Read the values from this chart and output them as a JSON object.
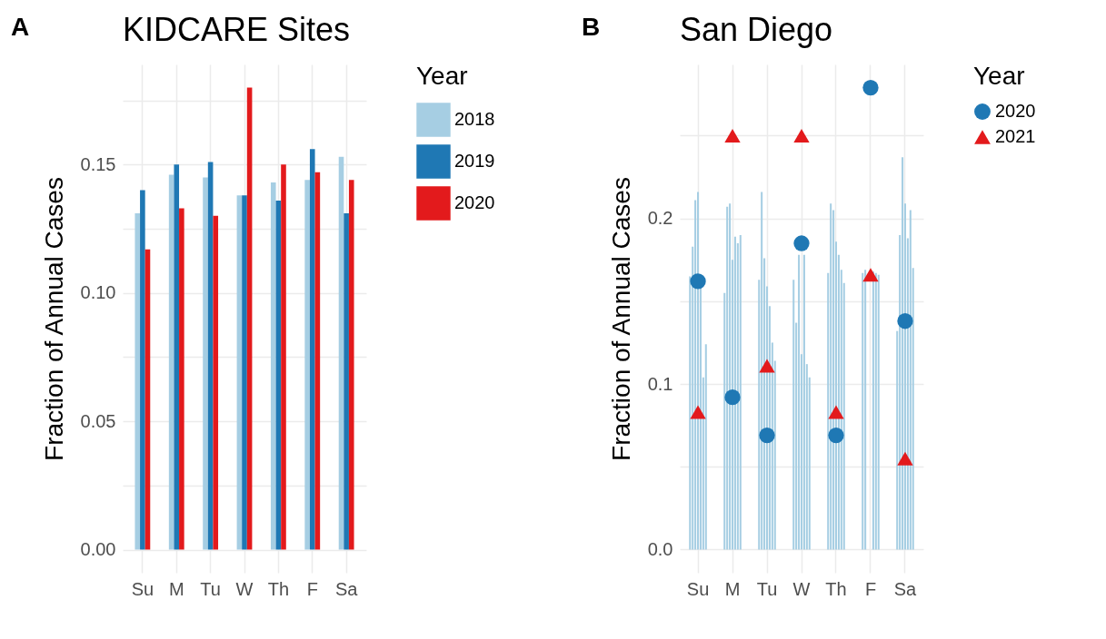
{
  "chart_data": [
    {
      "type": "bar",
      "title": "KIDCARE Sites",
      "ylabel": "Fraction of Annual Cases",
      "legend_title": "Year",
      "annotations": [
        "A"
      ],
      "categories": [
        "Su",
        "M",
        "Tu",
        "W",
        "Th",
        "F",
        "Sa"
      ],
      "series": [
        {
          "name": "2018",
          "color": "#a6cee3",
          "values": [
            0.131,
            0.146,
            0.145,
            0.138,
            0.143,
            0.144,
            0.153
          ]
        },
        {
          "name": "2019",
          "color": "#1f78b4",
          "values": [
            0.14,
            0.15,
            0.151,
            0.138,
            0.136,
            0.156,
            0.131
          ]
        },
        {
          "name": "2020",
          "color": "#e31a1c",
          "values": [
            0.117,
            0.133,
            0.13,
            0.18,
            0.15,
            0.147,
            0.144
          ]
        }
      ],
      "ylim": [
        -0.009,
        0.189
      ],
      "yticks": [
        {
          "value": 0,
          "label": "0.00"
        },
        {
          "value": 0.025,
          "label": null
        },
        {
          "value": 0.05,
          "label": "0.05"
        },
        {
          "value": 0.075,
          "label": null
        },
        {
          "value": 0.1,
          "label": "0.10"
        },
        {
          "value": 0.125,
          "label": null
        },
        {
          "value": 0.15,
          "label": "0.15"
        },
        {
          "value": 0.175,
          "label": null
        }
      ],
      "grid": true,
      "legend": "right"
    },
    {
      "type": "bar",
      "title": "San Diego",
      "ylabel": "Fraction of Annual Cases",
      "legend_title": "Year",
      "annotations": [
        "B"
      ],
      "categories": [
        null,
        null,
        null,
        null,
        null,
        null,
        "Su",
        null,
        null,
        null,
        null,
        null,
        null,
        null,
        null,
        null,
        null,
        null,
        null,
        "M",
        null,
        null,
        null,
        null,
        null,
        null,
        null,
        null,
        null,
        null,
        null,
        null,
        "Tu",
        null,
        null,
        null,
        null,
        null,
        null,
        null,
        null,
        null,
        null,
        null,
        null,
        "W",
        null,
        null,
        null,
        null,
        null,
        null,
        null,
        null,
        null,
        null,
        null,
        null,
        "Th",
        null,
        null,
        null,
        null,
        null,
        null,
        null,
        null,
        null,
        null,
        null,
        null,
        "F",
        null,
        null,
        null,
        null,
        null,
        null,
        null,
        null,
        null,
        null,
        null,
        null,
        "Sa",
        null,
        null,
        null,
        null,
        null,
        null
      ],
      "series": [
        {
          "type": "bar",
          "color": "#a6cee3",
          "values": [
            null,
            null,
            null,
            0.165,
            0.183,
            0.211,
            0.216,
            0.159,
            0.104,
            0.124,
            null,
            null,
            null,
            null,
            null,
            null,
            0.155,
            0.207,
            0.209,
            0.175,
            0.189,
            0.185,
            0.19,
            null,
            null,
            null,
            null,
            null,
            null,
            0.163,
            0.216,
            0.176,
            0.159,
            0.147,
            0.125,
            0.114,
            null,
            null,
            null,
            null,
            null,
            null,
            0.163,
            0.137,
            0.178,
            0.118,
            0.178,
            0.112,
            0.104,
            null,
            null,
            null,
            null,
            null,
            null,
            0.167,
            0.209,
            0.205,
            0.186,
            0.178,
            0.169,
            0.161,
            null,
            null,
            null,
            null,
            null,
            null,
            0.167,
            0.169,
            null,
            null,
            0.168,
            0.167,
            0.166,
            null,
            null,
            null,
            null,
            null,
            null,
            0.132,
            0.19,
            0.237,
            0.209,
            0.188,
            0.205,
            0.17,
            null,
            null,
            null
          ]
        },
        {
          "type": "scatter",
          "name": "2020",
          "color": "#1f78b4",
          "marker": "circle",
          "values": [
            null,
            null,
            null,
            null,
            null,
            null,
            0.162,
            null,
            null,
            null,
            null,
            null,
            null,
            null,
            null,
            null,
            null,
            null,
            null,
            0.092,
            null,
            null,
            null,
            null,
            null,
            null,
            null,
            null,
            null,
            null,
            null,
            null,
            0.069,
            null,
            null,
            null,
            null,
            null,
            null,
            null,
            null,
            null,
            null,
            null,
            null,
            0.185,
            null,
            null,
            null,
            null,
            null,
            null,
            null,
            null,
            null,
            null,
            null,
            null,
            0.069,
            null,
            null,
            null,
            null,
            null,
            null,
            null,
            null,
            null,
            null,
            null,
            null,
            0.279,
            null,
            null,
            null,
            null,
            null,
            null,
            null,
            null,
            null,
            null,
            null,
            null,
            0.138,
            null,
            null,
            null,
            null,
            null,
            null
          ]
        },
        {
          "type": "scatter",
          "name": "2021",
          "color": "#e31a1c",
          "marker": "triangle",
          "values": [
            null,
            null,
            null,
            null,
            null,
            null,
            0.083,
            null,
            null,
            null,
            null,
            null,
            null,
            null,
            null,
            null,
            null,
            null,
            null,
            0.25,
            null,
            null,
            null,
            null,
            null,
            null,
            null,
            null,
            null,
            null,
            null,
            null,
            0.111,
            null,
            null,
            null,
            null,
            null,
            null,
            null,
            null,
            null,
            null,
            null,
            null,
            0.25,
            null,
            null,
            null,
            null,
            null,
            null,
            null,
            null,
            null,
            null,
            null,
            null,
            0.083,
            null,
            null,
            null,
            null,
            null,
            null,
            null,
            null,
            null,
            null,
            null,
            null,
            0.166,
            null,
            null,
            null,
            null,
            null,
            null,
            null,
            null,
            null,
            null,
            null,
            null,
            0.055,
            null,
            null,
            null,
            null,
            null,
            null
          ]
        }
      ],
      "ylim": [
        -0.014,
        0.293
      ],
      "yticks": [
        {
          "value": 0,
          "label": "0.0"
        },
        {
          "value": 0.05,
          "label": null
        },
        {
          "value": 0.1,
          "label": "0.1"
        },
        {
          "value": 0.15,
          "label": null
        },
        {
          "value": 0.2,
          "label": "0.2"
        },
        {
          "value": 0.25,
          "label": null
        }
      ],
      "grid": true,
      "legend": "right"
    }
  ]
}
